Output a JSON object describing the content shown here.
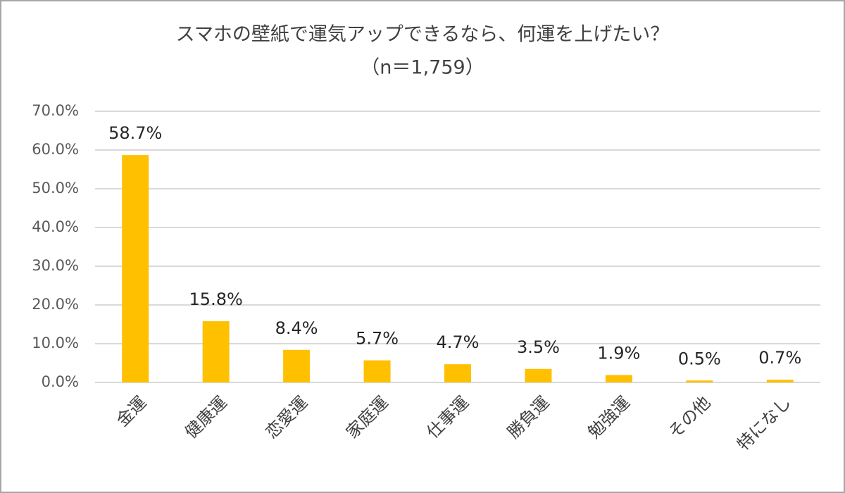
{
  "chart_data": {
    "type": "bar",
    "title": "スマホの壁紙で運気アップできるなら、何運を上げたい？",
    "subtitle": "（n＝1,759）",
    "categories": [
      "金運",
      "健康運",
      "恋愛運",
      "家庭運",
      "仕事運",
      "勝負運",
      "勉強運",
      "その他",
      "特になし"
    ],
    "values": [
      58.7,
      15.8,
      8.4,
      5.7,
      4.7,
      3.5,
      1.9,
      0.5,
      0.7
    ],
    "value_labels": [
      "58.7%",
      "15.8%",
      "8.4%",
      "5.7%",
      "4.7%",
      "3.5%",
      "1.9%",
      "0.5%",
      "0.7%"
    ],
    "color": "#ffc000",
    "ylim": [
      0,
      70
    ],
    "yticks": [
      {
        "value": 0,
        "label": "0.0%"
      },
      {
        "value": 10,
        "label": "10.0%"
      },
      {
        "value": 20,
        "label": "20.0%"
      },
      {
        "value": 30,
        "label": "30.0%"
      },
      {
        "value": 40,
        "label": "40.0%"
      },
      {
        "value": 50,
        "label": "50.0%"
      },
      {
        "value": 60,
        "label": "60.0%"
      },
      {
        "value": 70,
        "label": "70.0%"
      }
    ],
    "grid": true
  }
}
